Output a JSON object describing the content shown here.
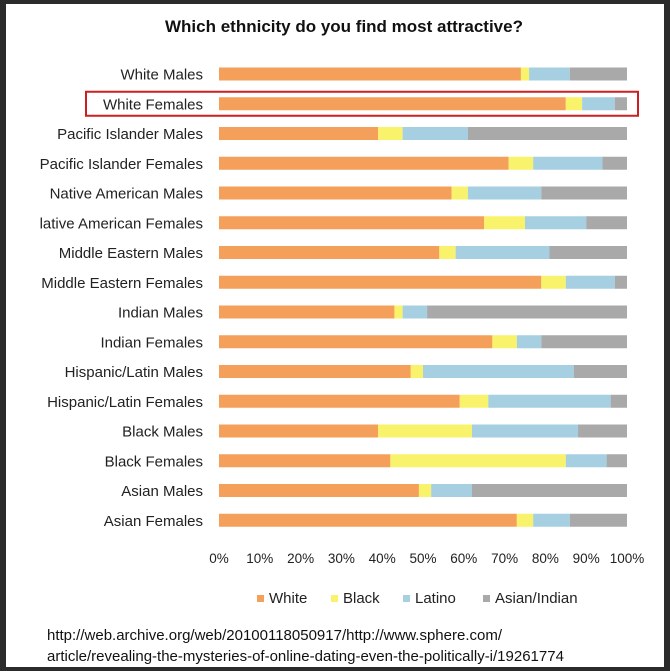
{
  "chart_data": {
    "type": "bar",
    "orientation": "horizontal",
    "stacked": true,
    "percent": true,
    "title": "Which ethnicity do you find most attractive?",
    "categories": [
      "White Males",
      "White Females",
      "Pacific Islander Males",
      "Pacific Islander Females",
      "Native American Males",
      "lative American Females",
      "Middle Eastern Males",
      "Middle Eastern Females",
      "Indian Males",
      "Indian Females",
      "Hispanic/Latin Males",
      "Hispanic/Latin Females",
      "Black Males",
      "Black Females",
      "Asian Males",
      "Asian Females"
    ],
    "series": [
      {
        "name": "White",
        "color": "#f5a05a",
        "values": [
          74,
          85,
          39,
          71,
          57,
          65,
          54,
          79,
          43,
          67,
          47,
          59,
          39,
          42,
          49,
          73
        ]
      },
      {
        "name": "Black",
        "color": "#f8f36a",
        "values": [
          2,
          4,
          6,
          6,
          4,
          10,
          4,
          6,
          2,
          6,
          3,
          7,
          23,
          43,
          3,
          4
        ]
      },
      {
        "name": "Latino",
        "color": "#a6cfe2",
        "values": [
          10,
          8,
          16,
          17,
          18,
          15,
          23,
          12,
          6,
          6,
          37,
          30,
          26,
          10,
          10,
          9
        ]
      },
      {
        "name": "Asian/Indian",
        "color": "#a9a9a9",
        "values": [
          14,
          3,
          39,
          6,
          21,
          10,
          19,
          3,
          49,
          21,
          13,
          4,
          12,
          5,
          38,
          14
        ]
      }
    ],
    "x_ticks": [
      "0%",
      "10%",
      "20%",
      "30%",
      "40%",
      "50%",
      "60%",
      "70%",
      "80%",
      "90%",
      "100%"
    ],
    "xlim": [
      0,
      100
    ],
    "grid": false,
    "legend_position": "bottom",
    "highlighted_category": "White Females",
    "highlight_color": "#cc1f1f"
  },
  "source": {
    "line1": "http://web.archive.org/web/20100118050917/http://www.sphere.com/",
    "line2": "article/revealing-the-mysteries-of-online-dating-even-the-politically-i/19261774"
  }
}
